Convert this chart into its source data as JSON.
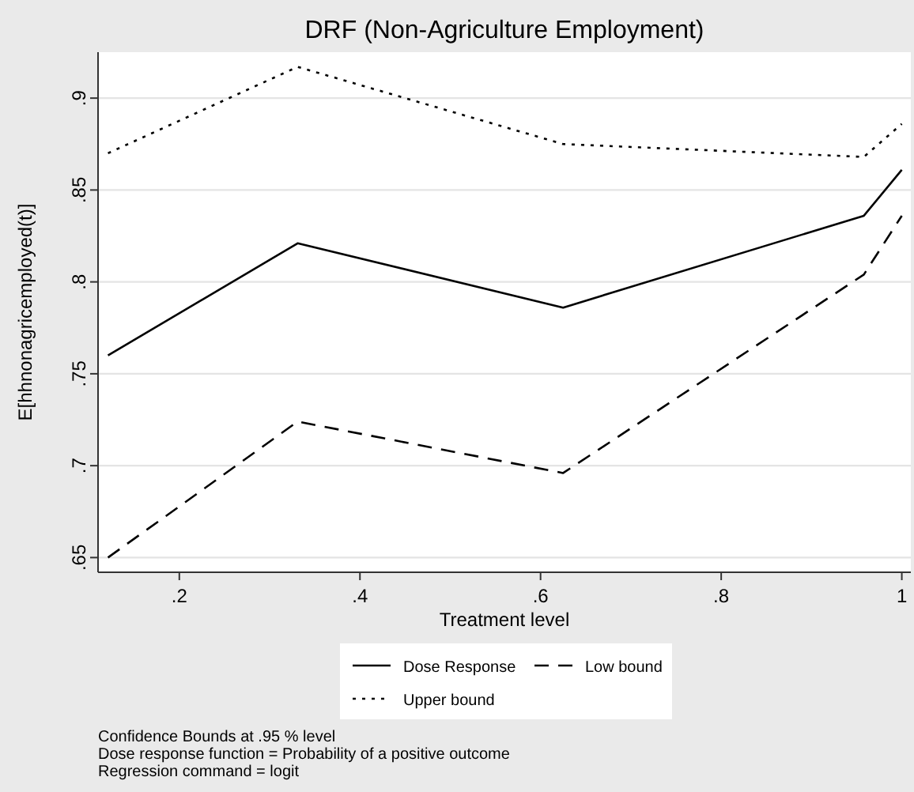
{
  "chart_data": {
    "type": "line",
    "title": "DRF (Non-Agriculture Employment)",
    "xlabel": "Treatment level",
    "ylabel": "E[hhnonagricemployed(t)]",
    "x": [
      0.121,
      0.331,
      0.625,
      0.958,
      1.0
    ],
    "series": [
      {
        "name": "Dose Response",
        "color": "#000000",
        "line_style": "solid",
        "values": [
          0.76,
          0.821,
          0.786,
          0.836,
          0.861
        ]
      },
      {
        "name": "Low bound",
        "color": "#000000",
        "line_style": "dashed",
        "values": [
          0.65,
          0.724,
          0.696,
          0.804,
          0.836
        ]
      },
      {
        "name": "Upper bound",
        "color": "#000000",
        "line_style": "dotted",
        "values": [
          0.87,
          0.917,
          0.875,
          0.868,
          0.886
        ]
      }
    ],
    "xlim": [
      0.11,
      1.01
    ],
    "ylim": [
      0.642,
      0.925
    ],
    "xticks": [
      {
        "value": 0.2,
        "label": ".2"
      },
      {
        "value": 0.4,
        "label": ".4"
      },
      {
        "value": 0.6,
        "label": ".6"
      },
      {
        "value": 0.8,
        "label": ".8"
      },
      1
    ],
    "yticks": [
      {
        "value": 0.65,
        "label": ".65"
      },
      {
        "value": 0.7,
        "label": ".7"
      },
      {
        "value": 0.75,
        "label": ".75"
      },
      {
        "value": 0.8,
        "label": ".8"
      },
      {
        "value": 0.85,
        "label": ".85"
      },
      {
        "value": 0.9,
        "label": ".9"
      }
    ],
    "grid": "y",
    "legend": "bottom",
    "marker": "none",
    "annotations": [
      "Confidence Bounds at .95 % level",
      "Dose response function = Probability of a positive outcome",
      "Regression command = logit"
    ]
  }
}
